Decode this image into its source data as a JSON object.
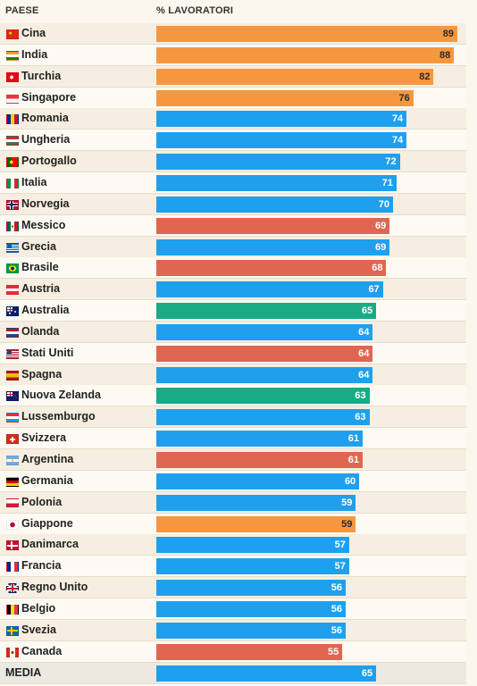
{
  "header": {
    "country": "PAESE",
    "value": "% LAVORATORI"
  },
  "colors": {
    "blue": "#1fa0ee",
    "orange": "#f6973f",
    "red": "#e06651",
    "green": "#18ab86"
  },
  "chart_data": {
    "type": "bar",
    "orientation": "horizontal",
    "title": "",
    "xlabel": "% LAVORATORI",
    "ylabel": "PAESE",
    "xlim": [
      0,
      89
    ],
    "grid": false,
    "categories": [
      "Cina",
      "India",
      "Turchia",
      "Singapore",
      "Romania",
      "Ungheria",
      "Portogallo",
      "Italia",
      "Norvegia",
      "Messico",
      "Grecia",
      "Brasile",
      "Austria",
      "Australia",
      "Olanda",
      "Stati Uniti",
      "Spagna",
      "Nuova Zelanda",
      "Lussemburgo",
      "Svizzera",
      "Argentina",
      "Germania",
      "Polonia",
      "Giappone",
      "Danimarca",
      "Francia",
      "Regno Unito",
      "Belgio",
      "Svezia",
      "Canada",
      "MEDIA"
    ],
    "values": [
      89,
      88,
      82,
      76,
      74,
      74,
      72,
      71,
      70,
      69,
      69,
      68,
      67,
      65,
      64,
      64,
      64,
      63,
      63,
      61,
      61,
      60,
      59,
      59,
      57,
      57,
      56,
      56,
      56,
      55,
      65
    ],
    "bar_colors": [
      "orange",
      "orange",
      "orange",
      "orange",
      "blue",
      "blue",
      "blue",
      "blue",
      "blue",
      "red",
      "blue",
      "red",
      "blue",
      "green",
      "blue",
      "red",
      "blue",
      "green",
      "blue",
      "blue",
      "red",
      "blue",
      "blue",
      "orange",
      "blue",
      "blue",
      "blue",
      "blue",
      "blue",
      "red",
      "blue"
    ],
    "flags": [
      "flag-china-icon",
      "flag-india-icon",
      "flag-turkey-icon",
      "flag-singapore-icon",
      "flag-romania-icon",
      "flag-hungary-icon",
      "flag-portugal-icon",
      "flag-italy-icon",
      "flag-norway-icon",
      "flag-mexico-icon",
      "flag-greece-icon",
      "flag-brazil-icon",
      "flag-austria-icon",
      "flag-australia-icon",
      "flag-netherlands-icon",
      "flag-usa-icon",
      "flag-spain-icon",
      "flag-new-zealand-icon",
      "flag-luxembourg-icon",
      "flag-switzerland-icon",
      "flag-argentina-icon",
      "flag-germany-icon",
      "flag-poland-icon",
      "flag-japan-icon",
      "flag-denmark-icon",
      "flag-france-icon",
      "flag-uk-icon",
      "flag-belgium-icon",
      "flag-sweden-icon",
      "flag-canada-icon",
      ""
    ]
  }
}
